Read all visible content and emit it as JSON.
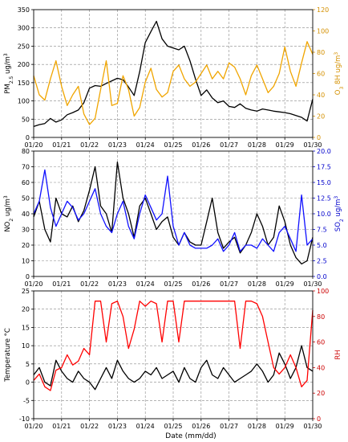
{
  "figure": {
    "xlabel": "Date (mm/dd)"
  },
  "chart_data": [
    {
      "type": "line",
      "categories": [
        "01/20",
        "01/21",
        "01/22",
        "01/23",
        "01/24",
        "01/25",
        "01/26",
        "01/27",
        "01/28",
        "01/29",
        "01/30"
      ],
      "ylabel_left": "PM2.5 ug/m3",
      "ylabel_left_main": "PM",
      "ylabel_left_sub": "2.5",
      "ylabel_left_unit": " ug/m",
      "ylabel_left_sup": "3",
      "ylabel_right": "O3 8H ug/m3",
      "ylabel_right_main": "O",
      "ylabel_right_sub": "3",
      "ylabel_right_unit": " 8H ug/m",
      "ylabel_right_sup": "3",
      "ylim_left": [
        0,
        350
      ],
      "ylim_right": [
        0,
        120
      ],
      "yticks_left": [
        "0",
        "50",
        "100",
        "150",
        "200",
        "250",
        "300",
        "350"
      ],
      "yticks_right": [
        "0",
        "20",
        "40",
        "60",
        "80",
        "100",
        "120"
      ],
      "grid": true,
      "series": [
        {
          "axis": "left",
          "color": "#000000",
          "x": [
            0,
            0.2,
            0.4,
            0.6,
            0.8,
            1.0,
            1.2,
            1.4,
            1.6,
            1.8,
            2.0,
            2.2,
            2.4,
            2.6,
            2.8,
            3.0,
            3.2,
            3.4,
            3.6,
            3.8,
            4.0,
            4.2,
            4.4,
            4.6,
            4.8,
            5.0,
            5.2,
            5.4,
            5.6,
            5.8,
            6.0,
            6.2,
            6.4,
            6.6,
            6.8,
            7.0,
            7.2,
            7.4,
            7.6,
            7.8,
            8.0,
            8.2,
            8.4,
            8.6,
            8.8,
            9.0,
            9.2,
            9.4,
            9.6,
            9.8,
            10.0
          ],
          "values": [
            30,
            35,
            38,
            52,
            42,
            48,
            62,
            68,
            75,
            95,
            135,
            142,
            140,
            148,
            155,
            162,
            158,
            138,
            115,
            180,
            260,
            290,
            318,
            270,
            250,
            245,
            240,
            250,
            210,
            160,
            115,
            130,
            108,
            95,
            100,
            85,
            82,
            92,
            80,
            75,
            72,
            78,
            75,
            72,
            70,
            68,
            65,
            60,
            55,
            45,
            105
          ]
        },
        {
          "axis": "right",
          "color": "#f0a500",
          "x": [
            0,
            0.2,
            0.4,
            0.6,
            0.8,
            1.0,
            1.2,
            1.4,
            1.6,
            1.8,
            2.0,
            2.2,
            2.4,
            2.6,
            2.8,
            3.0,
            3.2,
            3.4,
            3.6,
            3.8,
            4.0,
            4.2,
            4.4,
            4.6,
            4.8,
            5.0,
            5.2,
            5.4,
            5.6,
            5.8,
            6.0,
            6.2,
            6.4,
            6.6,
            6.8,
            7.0,
            7.2,
            7.4,
            7.6,
            7.8,
            8.0,
            8.2,
            8.4,
            8.6,
            8.8,
            9.0,
            9.2,
            9.4,
            9.6,
            9.8,
            10.0
          ],
          "values": [
            58,
            40,
            35,
            55,
            72,
            48,
            30,
            40,
            48,
            22,
            12,
            18,
            45,
            72,
            30,
            32,
            58,
            45,
            20,
            28,
            52,
            65,
            45,
            38,
            42,
            62,
            68,
            55,
            48,
            52,
            60,
            68,
            55,
            62,
            55,
            70,
            66,
            55,
            40,
            58,
            68,
            55,
            42,
            48,
            60,
            85,
            62,
            48,
            70,
            90,
            78
          ]
        }
      ]
    },
    {
      "type": "line",
      "categories": [
        "01/20",
        "01/21",
        "01/22",
        "01/23",
        "01/24",
        "01/25",
        "01/26",
        "01/27",
        "01/28",
        "01/29",
        "01/30"
      ],
      "ylabel_left": "NO2 ug/m3",
      "ylabel_left_main": "NO",
      "ylabel_left_sub": "2",
      "ylabel_left_unit": " ug/m",
      "ylabel_left_sup": "3",
      "ylabel_right": "SO2 ug/m3",
      "ylabel_right_main": "SO",
      "ylabel_right_sub": "2",
      "ylabel_right_unit": " ug/m",
      "ylabel_right_sup": "3",
      "ylim_left": [
        0,
        80
      ],
      "ylim_right": [
        0,
        20
      ],
      "yticks_left": [
        "0",
        "10",
        "20",
        "30",
        "40",
        "50",
        "60",
        "70",
        "80"
      ],
      "yticks_right": [
        "0.0",
        "2.5",
        "5.0",
        "7.5",
        "10.0",
        "12.5",
        "15.0",
        "17.5",
        "20.0"
      ],
      "grid": true,
      "series": [
        {
          "axis": "left",
          "color": "#000000",
          "x": [
            0,
            0.2,
            0.4,
            0.6,
            0.8,
            1.0,
            1.2,
            1.4,
            1.6,
            1.8,
            2.0,
            2.2,
            2.4,
            2.6,
            2.8,
            3.0,
            3.2,
            3.4,
            3.6,
            3.8,
            4.0,
            4.2,
            4.4,
            4.6,
            4.8,
            5.0,
            5.2,
            5.4,
            5.6,
            5.8,
            6.0,
            6.2,
            6.4,
            6.6,
            6.8,
            7.0,
            7.2,
            7.4,
            7.6,
            7.8,
            8.0,
            8.2,
            8.4,
            8.6,
            8.8,
            9.0,
            9.2,
            9.4,
            9.6,
            9.8,
            10.0
          ],
          "values": [
            38,
            48,
            30,
            22,
            50,
            40,
            38,
            45,
            35,
            42,
            55,
            70,
            45,
            40,
            28,
            73,
            50,
            40,
            25,
            45,
            50,
            40,
            30,
            35,
            38,
            25,
            20,
            28,
            22,
            20,
            20,
            35,
            50,
            28,
            18,
            22,
            25,
            15,
            20,
            28,
            40,
            32,
            20,
            25,
            45,
            35,
            20,
            12,
            8,
            10,
            25
          ]
        },
        {
          "axis": "right",
          "color": "#1010ff",
          "x": [
            0,
            0.2,
            0.4,
            0.6,
            0.8,
            1.0,
            1.2,
            1.4,
            1.6,
            1.8,
            2.0,
            2.2,
            2.4,
            2.6,
            2.8,
            3.0,
            3.2,
            3.4,
            3.6,
            3.8,
            4.0,
            4.2,
            4.4,
            4.6,
            4.8,
            5.0,
            5.2,
            5.4,
            5.6,
            5.8,
            6.0,
            6.2,
            6.4,
            6.6,
            6.8,
            7.0,
            7.2,
            7.4,
            7.6,
            7.8,
            8.0,
            8.2,
            8.4,
            8.6,
            8.8,
            9.0,
            9.2,
            9.4,
            9.6,
            9.8,
            10.0
          ],
          "values": [
            10,
            12,
            17,
            11,
            8,
            10,
            12,
            11,
            9,
            10,
            12,
            14,
            10,
            8,
            7,
            10,
            12,
            8,
            6,
            10,
            13,
            11,
            9,
            10,
            16,
            8,
            5,
            7,
            5,
            4.5,
            4.5,
            4.5,
            5,
            6,
            4,
            5,
            7,
            4,
            5,
            5,
            4.5,
            6,
            5,
            4,
            7,
            8,
            6,
            4,
            13,
            5,
            6
          ]
        }
      ]
    },
    {
      "type": "line",
      "categories": [
        "01/20",
        "01/21",
        "01/22",
        "01/23",
        "01/24",
        "01/25",
        "01/26",
        "01/27",
        "01/28",
        "01/29",
        "01/30"
      ],
      "ylabel_left": "Temperature °C",
      "ylabel_right": "RH",
      "ylim_left": [
        -10,
        25
      ],
      "ylim_right": [
        0,
        100
      ],
      "yticks_left": [
        "-10",
        "-5",
        "0",
        "5",
        "10",
        "15",
        "20",
        "25"
      ],
      "yticks_right": [
        "0",
        "20",
        "40",
        "60",
        "80",
        "100"
      ],
      "grid": true,
      "series": [
        {
          "axis": "left",
          "color": "#000000",
          "x": [
            0,
            0.2,
            0.4,
            0.6,
            0.8,
            1.0,
            1.2,
            1.4,
            1.6,
            1.8,
            2.0,
            2.2,
            2.4,
            2.6,
            2.8,
            3.0,
            3.2,
            3.4,
            3.6,
            3.8,
            4.0,
            4.2,
            4.4,
            4.6,
            4.8,
            5.0,
            5.2,
            5.4,
            5.6,
            5.8,
            6.0,
            6.2,
            6.4,
            6.6,
            6.8,
            7.0,
            7.2,
            7.4,
            7.6,
            7.8,
            8.0,
            8.2,
            8.4,
            8.6,
            8.8,
            9.0,
            9.2,
            9.4,
            9.6,
            9.8,
            10.0
          ],
          "values": [
            2,
            4,
            0,
            -1,
            6,
            3,
            1,
            0,
            3,
            1,
            0,
            -2,
            1,
            4,
            1,
            6,
            3,
            1,
            0,
            1,
            3,
            2,
            4,
            1,
            2,
            3,
            0,
            4,
            1,
            0,
            4,
            6,
            2,
            1,
            4,
            2,
            0,
            1,
            2,
            3,
            5,
            3,
            0,
            2,
            8,
            5,
            1,
            4,
            10,
            4,
            3
          ]
        },
        {
          "axis": "right",
          "color": "#ff0000",
          "x": [
            0,
            0.2,
            0.4,
            0.6,
            0.8,
            1.0,
            1.2,
            1.4,
            1.6,
            1.8,
            2.0,
            2.2,
            2.4,
            2.6,
            2.8,
            3.0,
            3.2,
            3.4,
            3.6,
            3.8,
            4.0,
            4.2,
            4.4,
            4.6,
            4.8,
            5.0,
            5.2,
            5.4,
            5.6,
            5.8,
            6.0,
            6.2,
            6.4,
            6.6,
            6.8,
            7.0,
            7.2,
            7.4,
            7.6,
            7.8,
            8.0,
            8.2,
            8.4,
            8.6,
            8.8,
            9.0,
            9.2,
            9.4,
            9.6,
            9.8,
            10.0
          ],
          "values": [
            30,
            35,
            25,
            22,
            38,
            40,
            50,
            42,
            45,
            55,
            50,
            92,
            92,
            60,
            90,
            92,
            80,
            55,
            70,
            92,
            88,
            92,
            90,
            60,
            92,
            92,
            60,
            92,
            92,
            92,
            92,
            92,
            92,
            92,
            92,
            92,
            92,
            55,
            92,
            92,
            90,
            80,
            60,
            40,
            35,
            40,
            50,
            40,
            25,
            30,
            85
          ]
        }
      ]
    }
  ]
}
